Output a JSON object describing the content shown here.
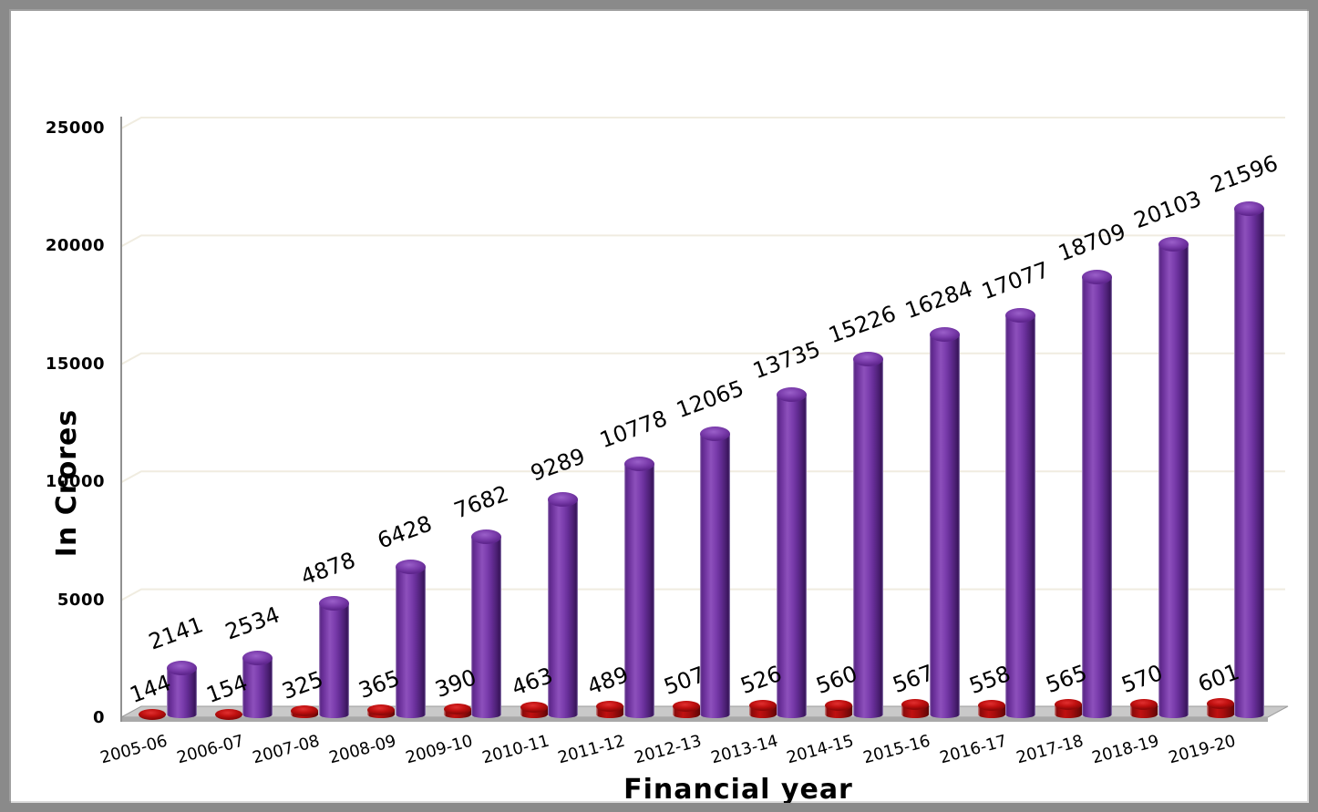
{
  "chart_data": {
    "type": "bar",
    "style": "3d-cylinder",
    "title": "",
    "xlabel": "Financial year",
    "ylabel": "In Crores",
    "categories": [
      "2005-06",
      "2006-07",
      "2007-08",
      "2008-09",
      "2009-10",
      "2010-11",
      "2011-12",
      "2012-13",
      "2013-14",
      "2014-15",
      "2015-16",
      "2016-17",
      "2017-18",
      "2018-19",
      "2019-20"
    ],
    "series": [
      {
        "name": "small-red-series",
        "color": "#b30f0f",
        "values": [
          144,
          154,
          325,
          365,
          390,
          463,
          489,
          507,
          526,
          560,
          567,
          558,
          565,
          570,
          601
        ]
      },
      {
        "name": "large-purple-series",
        "color": "#7b3dae",
        "values": [
          2141,
          2534,
          4878,
          6428,
          7682,
          9289,
          10778,
          12065,
          13735,
          15226,
          16284,
          17077,
          18709,
          20103,
          21596
        ]
      }
    ],
    "ylim": [
      0,
      25000
    ],
    "yticks": [
      0,
      5000,
      10000,
      15000,
      20000,
      25000
    ],
    "grid": true,
    "legend_position": "none",
    "data_labels": true,
    "data_label_rotation": -20,
    "category_label_rotation": -15
  },
  "colors": {
    "purple_bar": "#7b3dae",
    "red_bar": "#b30f0f",
    "gridline": "#f0ece0",
    "axis": "#909090",
    "floor_top": "#c9c9c9",
    "floor_front": "#a9a9a9",
    "frame": "#8a8a8a",
    "background": "#ffffff",
    "text": "#000000"
  }
}
